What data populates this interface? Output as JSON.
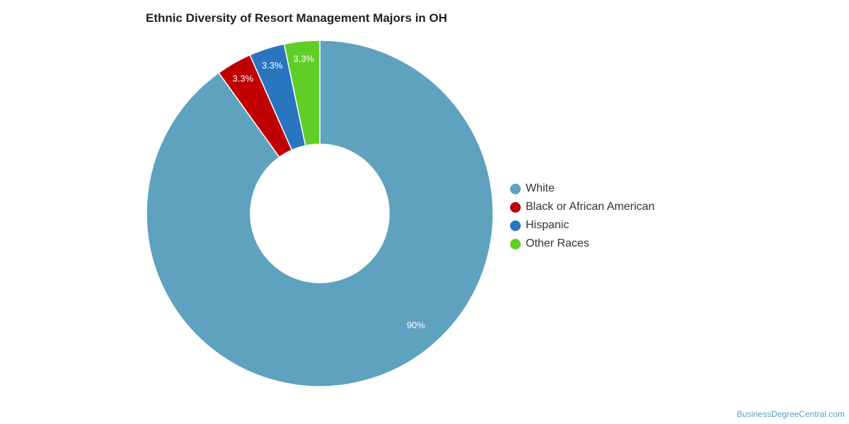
{
  "chart_data": {
    "type": "pie",
    "title": "Ethnic Diversity of Resort Management Majors in OH",
    "categories": [
      "White",
      "Black or African American",
      "Hispanic",
      "Other Races"
    ],
    "values": [
      90,
      3.3,
      3.3,
      3.3
    ],
    "value_labels": [
      "90%",
      "3.3%",
      "3.3%",
      "3.3%"
    ],
    "colors": [
      "#5ea2bf",
      "#c00000",
      "#2a75bf",
      "#5fcf27"
    ],
    "donut": true,
    "legend_position": "right"
  },
  "source": "BusinessDegreeCentral.com"
}
